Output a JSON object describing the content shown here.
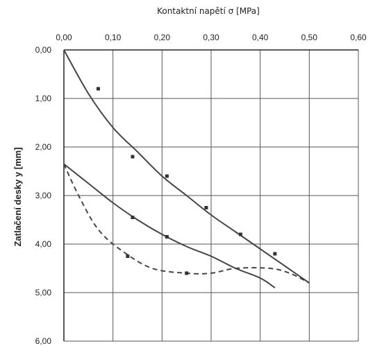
{
  "chart_data": {
    "type": "scatter",
    "title": "Kontaktní napětí σ [MPa]",
    "xlabel": "Kontaktní napětí σ [MPa]",
    "ylabel": "Zatlačení desky y [mm]",
    "x_axis_position": "top",
    "y_axis_inverted": true,
    "xlim": [
      0,
      0.6
    ],
    "ylim": [
      0,
      6
    ],
    "x_tick_labels": [
      "0,00",
      "0,10",
      "0,20",
      "0,30",
      "0,40",
      "0,50",
      "0,60"
    ],
    "y_tick_labels": [
      "0,00",
      "1,00",
      "2,00",
      "3,00",
      "4,00",
      "5,00",
      "6,00"
    ],
    "x_ticks": [
      0,
      0.1,
      0.2,
      0.3,
      0.4,
      0.5,
      0.6
    ],
    "y_ticks": [
      0,
      1,
      2,
      3,
      4,
      5,
      6
    ],
    "grid": true,
    "colors": {
      "line": "#444444",
      "grid": "#555555",
      "marker": "#333333"
    },
    "series": [
      {
        "style": "solid",
        "markers": [
          [
            0.07,
            0.8
          ],
          [
            0.14,
            2.2
          ],
          [
            0.21,
            2.6
          ],
          [
            0.29,
            3.25
          ],
          [
            0.36,
            3.8
          ],
          [
            0.43,
            4.2
          ]
        ],
        "line": [
          [
            0.0,
            0.0
          ],
          [
            0.05,
            0.9
          ],
          [
            0.1,
            1.6
          ],
          [
            0.15,
            2.1
          ],
          [
            0.2,
            2.6
          ],
          [
            0.25,
            3.0
          ],
          [
            0.3,
            3.4
          ],
          [
            0.35,
            3.75
          ],
          [
            0.4,
            4.1
          ],
          [
            0.45,
            4.45
          ],
          [
            0.5,
            4.8
          ]
        ]
      },
      {
        "style": "solid",
        "markers": [
          [
            0.14,
            3.45
          ],
          [
            0.21,
            3.85
          ]
        ],
        "line": [
          [
            0.0,
            2.35
          ],
          [
            0.05,
            2.75
          ],
          [
            0.1,
            3.15
          ],
          [
            0.15,
            3.5
          ],
          [
            0.2,
            3.8
          ],
          [
            0.25,
            4.05
          ],
          [
            0.3,
            4.25
          ],
          [
            0.35,
            4.5
          ],
          [
            0.4,
            4.7
          ],
          [
            0.43,
            4.9
          ]
        ]
      },
      {
        "style": "dashed",
        "markers": [
          [
            0.13,
            4.25
          ],
          [
            0.25,
            4.6
          ]
        ],
        "line": [
          [
            0.0,
            2.35
          ],
          [
            0.03,
            3.0
          ],
          [
            0.07,
            3.7
          ],
          [
            0.12,
            4.15
          ],
          [
            0.18,
            4.5
          ],
          [
            0.25,
            4.6
          ],
          [
            0.3,
            4.6
          ],
          [
            0.35,
            4.5
          ],
          [
            0.42,
            4.5
          ],
          [
            0.46,
            4.6
          ],
          [
            0.5,
            4.8
          ]
        ]
      }
    ]
  }
}
